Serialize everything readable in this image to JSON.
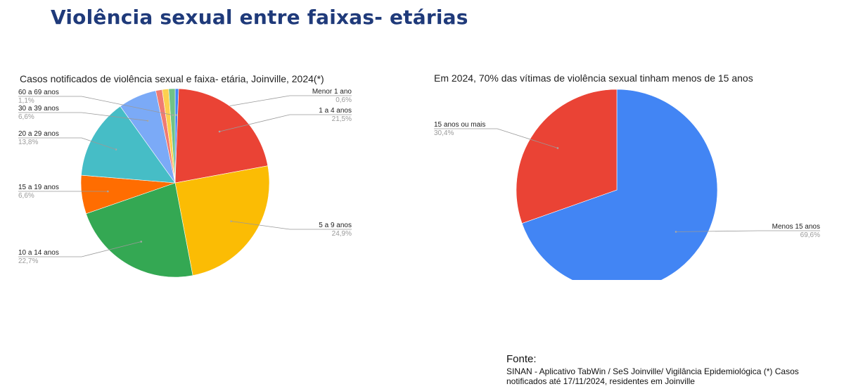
{
  "page": {
    "title": "Violência sexual entre faixas- etárias"
  },
  "chart_data": [
    {
      "type": "pie",
      "title": "Casos notificados de violência sexual e faixa- etária, Joinville, 2024(*)",
      "slices": [
        {
          "label": "Menor 1 ano",
          "value": 0.6,
          "value_label": "0,6%",
          "color": "#4285f4"
        },
        {
          "label": "1 a 4 anos",
          "value": 21.5,
          "value_label": "21,5%",
          "color": "#ea4335"
        },
        {
          "label": "5 a 9 anos",
          "value": 24.9,
          "value_label": "24,9%",
          "color": "#fbbc04"
        },
        {
          "label": "10 a 14 anos",
          "value": 22.7,
          "value_label": "22,7%",
          "color": "#34a853"
        },
        {
          "label": "15 a 19 anos",
          "value": 6.6,
          "value_label": "6,6%",
          "color": "#ff6d01"
        },
        {
          "label": "20 a 29 anos",
          "value": 13.8,
          "value_label": "13,8%",
          "color": "#46bdc6"
        },
        {
          "label": "30 a 39 anos",
          "value": 6.6,
          "value_label": "6,6%",
          "color": "#7baaf7"
        },
        {
          "label": "",
          "value": 1.1,
          "value_label": "",
          "color": "#f07b72"
        },
        {
          "label": "",
          "value": 1.1,
          "value_label": "",
          "color": "#fcd04f"
        },
        {
          "label": "60 a 69 anos",
          "value": 1.1,
          "value_label": "1,1%",
          "color": "#71c287"
        }
      ]
    },
    {
      "type": "pie",
      "title": "Em 2024, 70% das vítimas de violência sexual tinham menos de 15 anos",
      "slices": [
        {
          "label": "Menos 15 anos",
          "value": 69.6,
          "value_label": "69,6%",
          "color": "#4285f4"
        },
        {
          "label": "15 anos ou mais",
          "value": 30.4,
          "value_label": "30,4%",
          "color": "#ea4335"
        }
      ]
    }
  ],
  "source": {
    "heading": "Fonte:",
    "text": "SINAN - Aplicativo TabWin / SeS Joinville/ Vigilância Epidemiológica (*) Casos notificados até 17/11/2024, residentes em Joinville"
  }
}
